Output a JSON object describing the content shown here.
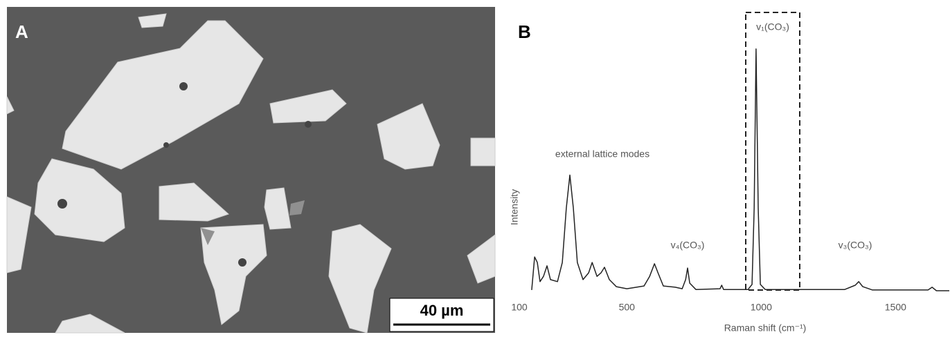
{
  "image_panel": {
    "label": "A",
    "scale_bar": "40 µm"
  },
  "chart_data": {
    "type": "line",
    "panel_label": "B",
    "x_label": "Raman shift (cm⁻¹)",
    "y_label": "Intensity",
    "annotations": [
      "external lattice modes",
      "v₄(CO₃)",
      "v₁(CO₃)",
      "v₃(CO₃)"
    ],
    "x": [
      146,
      157,
      167,
      177,
      190,
      203,
      216,
      242,
      260,
      275,
      288,
      301,
      316,
      337,
      358,
      371,
      389,
      404,
      417,
      435,
      461,
      500,
      564,
      585,
      603,
      616,
      636,
      680,
      706,
      719,
      726,
      734,
      757,
      847,
      853,
      860,
      951,
      966,
      974,
      981,
      989,
      997,
      1015,
      1311,
      1350,
      1363,
      1378,
      1414,
      1621,
      1636,
      1652,
      1700
    ],
    "series": [
      {
        "color": "#222222",
        "values": [
          1.4,
          14.5,
          12.3,
          4.7,
          6.8,
          11,
          5.5,
          4.7,
          12.3,
          34,
          47,
          34,
          12.3,
          5.5,
          8.2,
          12.3,
          6.8,
          8.2,
          10.4,
          5.5,
          2.7,
          1.9,
          3,
          6.8,
          11.8,
          8.2,
          3,
          2.5,
          1.9,
          5.5,
          10.1,
          4.1,
          1.6,
          1.9,
          3.3,
          1.6,
          1.6,
          3.6,
          34,
          97,
          34,
          3.6,
          1.6,
          1.6,
          3.3,
          4.7,
          2.7,
          1.4,
          1.4,
          2.5,
          1.1,
          1.1
        ]
      }
    ],
    "xlim": [
      100,
      1700
    ],
    "ylim": [
      0,
      100
    ],
    "xticks": [
      100,
      500,
      1000,
      1500
    ]
  }
}
